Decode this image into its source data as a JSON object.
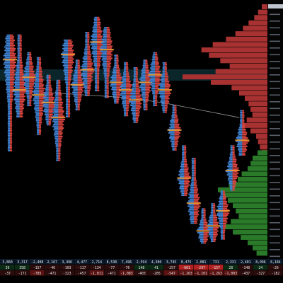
{
  "colors": {
    "background": "#000000",
    "bid": "#3f84d6",
    "ask": "#d9443f",
    "poc": "#f0a030",
    "volume_profile": "#a83232",
    "delta_positive": "#2a7a2a",
    "delta_negative": "#8a2020",
    "band": "#0c2a30",
    "axis_text": "#9aa6b8",
    "vwap": "#9a9a9a"
  },
  "chart_data": {
    "type": "footprint",
    "price_ylim": [
      0,
      100
    ],
    "bars": [
      {
        "low": 42,
        "high": 88,
        "poc": 78
      },
      {
        "low": 55,
        "high": 88,
        "poc": 66
      },
      {
        "low": 60,
        "high": 81,
        "poc": 71
      },
      {
        "low": 48,
        "high": 79,
        "poc": 64
      },
      {
        "low": 52,
        "high": 72,
        "poc": 61
      },
      {
        "low": 38,
        "high": 70,
        "poc": 55
      },
      {
        "low": 55,
        "high": 86,
        "poc": 80
      },
      {
        "low": 58,
        "high": 78,
        "poc": 68
      },
      {
        "low": 64,
        "high": 89,
        "poc": 74
      },
      {
        "low": 66,
        "high": 95,
        "poc": 85
      },
      {
        "low": 63,
        "high": 91,
        "poc": 82
      },
      {
        "low": 61,
        "high": 80,
        "poc": 69
      },
      {
        "low": 56,
        "high": 77,
        "poc": 66
      },
      {
        "low": 53,
        "high": 75,
        "poc": 62
      },
      {
        "low": 58,
        "high": 78,
        "poc": 69
      },
      {
        "low": 60,
        "high": 81,
        "poc": 72
      },
      {
        "low": 57,
        "high": 77,
        "poc": 66
      },
      {
        "low": 42,
        "high": 60,
        "poc": 50
      },
      {
        "low": 24,
        "high": 44,
        "poc": 31
      },
      {
        "low": 13,
        "high": 39,
        "poc": 21
      },
      {
        "low": 5,
        "high": 19,
        "poc": 10
      },
      {
        "low": 6,
        "high": 21,
        "poc": 12
      },
      {
        "low": 7,
        "high": 26,
        "poc": 18
      },
      {
        "low": 26,
        "high": 44,
        "poc": 34
      },
      {
        "low": 40,
        "high": 58,
        "poc": 46
      }
    ],
    "vwap": [
      [
        0,
        66
      ],
      [
        4,
        65
      ],
      [
        8,
        64
      ],
      [
        12,
        63
      ],
      [
        16,
        61
      ],
      [
        20,
        58
      ],
      [
        24,
        55
      ]
    ],
    "volume_profile": {
      "price_min": 40,
      "price_max": 100,
      "volumes": [
        6,
        10,
        14,
        20,
        26,
        34,
        44,
        58,
        70,
        62,
        50,
        40,
        55,
        90,
        60,
        38,
        30,
        24,
        20,
        18,
        16,
        22,
        28,
        18,
        12,
        10,
        8,
        6
      ]
    },
    "delta_profile": {
      "price_min": 0,
      "price_max": 42,
      "volumes": [
        20,
        30,
        34,
        40,
        52,
        60,
        78,
        100,
        90,
        80,
        70,
        64,
        58,
        74,
        86,
        70,
        54,
        40,
        30,
        22
      ]
    },
    "table_rows": [
      [
        "3,860",
        "3,317",
        "-2,408",
        "2,167",
        "3,496",
        "4,477",
        "2,714",
        "8,530",
        "7,496",
        "2,594",
        "4,300",
        "3,745",
        "8,475",
        "2,081",
        "731",
        "2,331",
        "2,401",
        "8,096",
        "6,184"
      ],
      [
        "39",
        "358",
        "-157",
        "-46",
        "-103",
        "-117",
        "-134",
        "-77",
        "-76",
        "148",
        "41",
        "-257",
        "-601",
        "-297",
        "-157",
        "28",
        "-148",
        "24",
        "-26"
      ],
      [
        "-37",
        "-171",
        "-785",
        "-471",
        "-323",
        "-457",
        "-1,011",
        "-471",
        "-1,083",
        "-403",
        "-285",
        "-547",
        "-1,263",
        "-1,101",
        "-1,263",
        "-1,003",
        "-437",
        "-327",
        "-182"
      ]
    ]
  }
}
